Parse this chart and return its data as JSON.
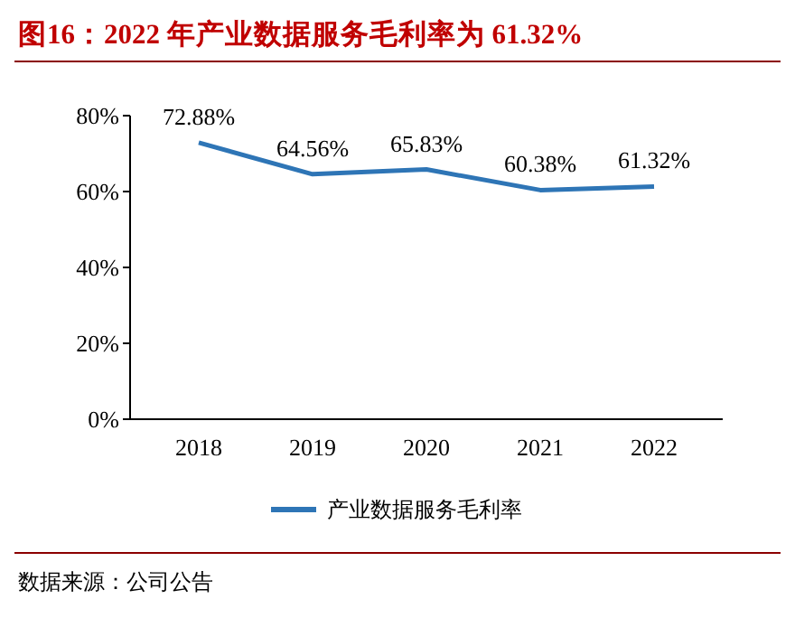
{
  "chart_data": {
    "type": "line",
    "title": "图16：2022 年产业数据服务毛利率为 61.32%",
    "categories": [
      "2018",
      "2019",
      "2020",
      "2021",
      "2022"
    ],
    "series": [
      {
        "name": "产业数据服务毛利率",
        "color": "#2e75b6",
        "values": [
          72.88,
          64.56,
          65.83,
          60.38,
          61.32
        ]
      }
    ],
    "value_labels": [
      "72.88%",
      "64.56%",
      "65.83%",
      "60.38%",
      "61.32%"
    ],
    "ylim": [
      0,
      80
    ],
    "yticks": [
      {
        "value": 0,
        "label": "0%"
      },
      {
        "value": 20,
        "label": "20%"
      },
      {
        "value": 40,
        "label": "40%"
      },
      {
        "value": 60,
        "label": "60%"
      },
      {
        "value": 80,
        "label": "80%"
      }
    ],
    "grid": false,
    "legend": "bottom",
    "marker": "none",
    "line_style": "solid",
    "annotations": [
      "数据来源：公司公告"
    ]
  }
}
